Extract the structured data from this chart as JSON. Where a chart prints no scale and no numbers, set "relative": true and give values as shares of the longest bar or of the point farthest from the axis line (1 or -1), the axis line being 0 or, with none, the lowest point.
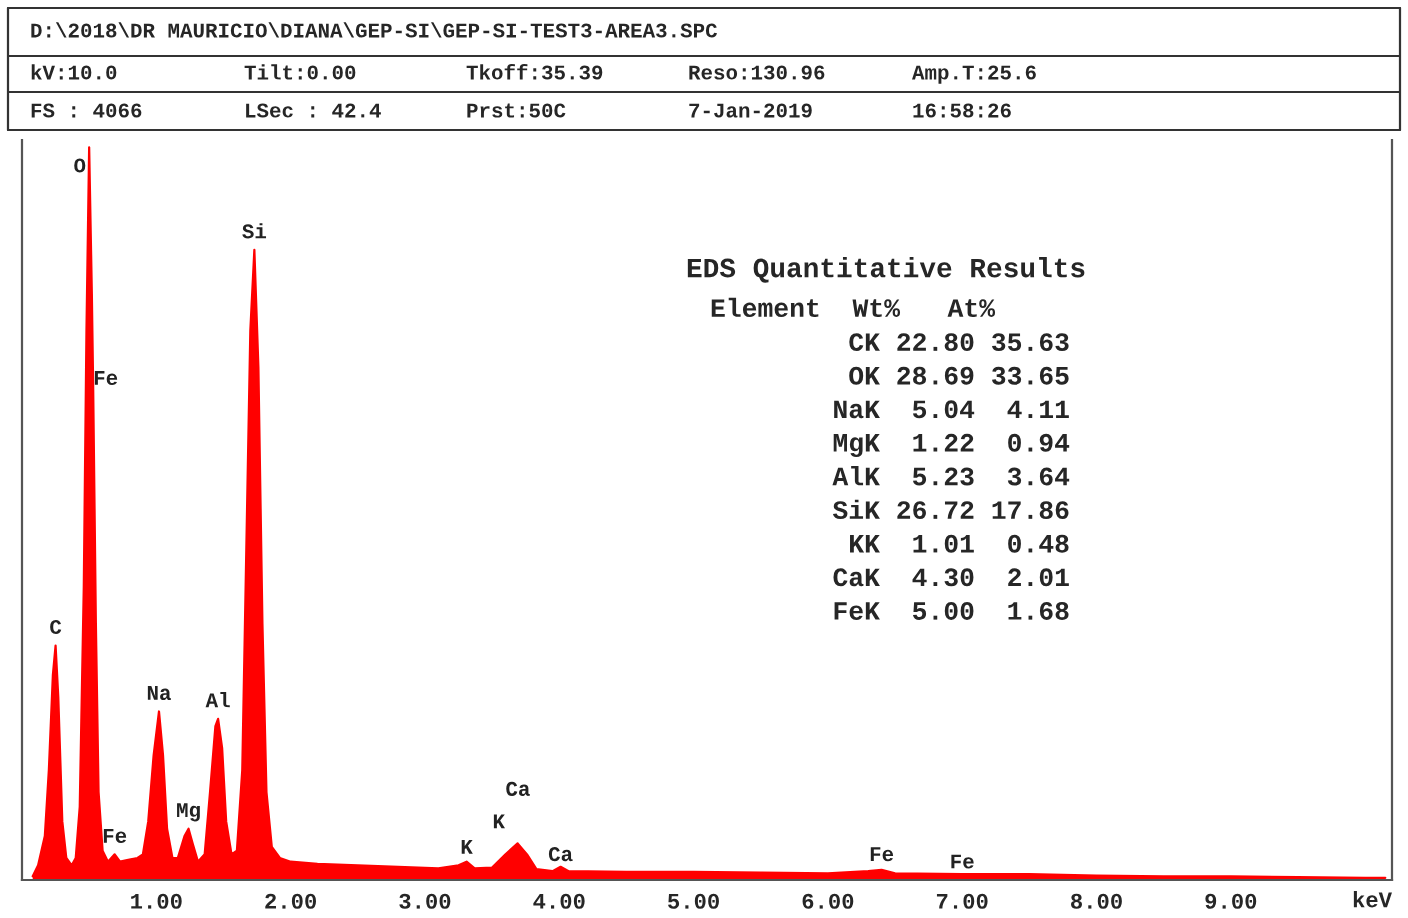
{
  "chart_data": {
    "type": "area",
    "relative": true,
    "color": "#ff0000",
    "xlabel": "keV",
    "x": [
      0.08,
      0.12,
      0.17,
      0.2,
      0.23,
      0.25,
      0.27,
      0.3,
      0.33,
      0.37,
      0.4,
      0.43,
      0.46,
      0.48,
      0.5,
      0.52,
      0.53,
      0.55,
      0.57,
      0.6,
      0.64,
      0.69,
      0.73,
      0.8,
      0.86,
      0.9,
      0.94,
      0.98,
      1.02,
      1.05,
      1.08,
      1.12,
      1.16,
      1.21,
      1.24,
      1.27,
      1.31,
      1.36,
      1.4,
      1.44,
      1.46,
      1.49,
      1.52,
      1.56,
      1.6,
      1.64,
      1.67,
      1.7,
      1.73,
      1.76,
      1.79,
      1.82,
      1.86,
      1.92,
      2.0,
      2.2,
      2.5,
      2.8,
      3.1,
      3.25,
      3.31,
      3.37,
      3.5,
      3.6,
      3.69,
      3.76,
      3.83,
      3.95,
      4.01,
      4.07,
      4.5,
      5.0,
      5.5,
      6.0,
      6.3,
      6.4,
      6.5,
      7.0,
      7.5,
      8.0,
      8.5,
      9.0,
      9.5,
      10.0,
      10.15
    ],
    "values": [
      0.005,
      0.02,
      0.06,
      0.15,
      0.28,
      0.32,
      0.25,
      0.08,
      0.03,
      0.02,
      0.03,
      0.1,
      0.4,
      0.75,
      1.0,
      0.8,
      0.67,
      0.35,
      0.12,
      0.04,
      0.025,
      0.035,
      0.025,
      0.028,
      0.03,
      0.035,
      0.08,
      0.17,
      0.23,
      0.17,
      0.07,
      0.03,
      0.03,
      0.06,
      0.07,
      0.05,
      0.025,
      0.035,
      0.12,
      0.21,
      0.22,
      0.18,
      0.08,
      0.035,
      0.04,
      0.15,
      0.45,
      0.75,
      0.86,
      0.7,
      0.35,
      0.12,
      0.045,
      0.03,
      0.025,
      0.022,
      0.02,
      0.018,
      0.016,
      0.02,
      0.025,
      0.016,
      0.017,
      0.035,
      0.05,
      0.035,
      0.015,
      0.012,
      0.018,
      0.012,
      0.011,
      0.011,
      0.01,
      0.009,
      0.012,
      0.014,
      0.009,
      0.008,
      0.008,
      0.006,
      0.005,
      0.005,
      0.004,
      0.003,
      0.003
    ],
    "xlim": [
      0,
      10.2
    ],
    "xticks": [
      {
        "value": 1,
        "label": "1.00"
      },
      {
        "value": 2,
        "label": "2.00"
      },
      {
        "value": 3,
        "label": "3.00"
      },
      {
        "value": 4,
        "label": "4.00"
      },
      {
        "value": 5,
        "label": "5.00"
      },
      {
        "value": 6,
        "label": "6.00"
      },
      {
        "value": 7,
        "label": "7.00"
      },
      {
        "value": 8,
        "label": "8.00"
      },
      {
        "value": 9,
        "label": "9.00"
      }
    ],
    "annotations": [
      "D:\\2018\\DR MAURICIO\\DIANA\\GEP-SI\\GEP-SI-TEST3-AREA3.SPC",
      "kV:10.0",
      "Tilt:0.00",
      "Tkoff:35.39",
      "Reso:130.96",
      "Amp.T:25.6",
      "FS : 4066",
      "LSec : 42.4",
      "Prst:50C",
      "7-Jan-2019",
      "16:58:26",
      "EDS Quantitative Results",
      "Element  Wt%   At%",
      "CK 22.80 35.63",
      "OK 28.69 33.65",
      "NaK  5.04  4.11",
      "MgK  1.22  0.94",
      "AlK  5.23  3.64",
      "SiK 26.72 17.86",
      "KK  1.01  0.48",
      "CaK  4.30  2.01",
      "FeK  5.00  1.68",
      "K",
      "Ca",
      {
        "text": "C",
        "x": 0.25,
        "y": 0.33
      },
      {
        "text": "O",
        "x": 0.43,
        "y": 0.96
      },
      {
        "text": "Fe",
        "x": 0.53,
        "y": 0.67
      },
      {
        "text": "Fe",
        "x": 0.69,
        "y": 0.045
      },
      {
        "text": "Na",
        "x": 1.02,
        "y": 0.24
      },
      {
        "text": "Mg",
        "x": 1.24,
        "y": 0.08
      },
      {
        "text": "Al",
        "x": 1.46,
        "y": 0.23
      },
      {
        "text": "Si",
        "x": 1.73,
        "y": 0.87
      },
      {
        "text": "K",
        "x": 3.31,
        "y": 0.03
      },
      {
        "text": "Ca",
        "x": 4.01,
        "y": 0.02
      },
      {
        "text": "Fe",
        "x": 6.4,
        "y": 0.02
      },
      {
        "text": "Fe",
        "x": 7.0,
        "y": 0.01
      }
    ]
  }
}
